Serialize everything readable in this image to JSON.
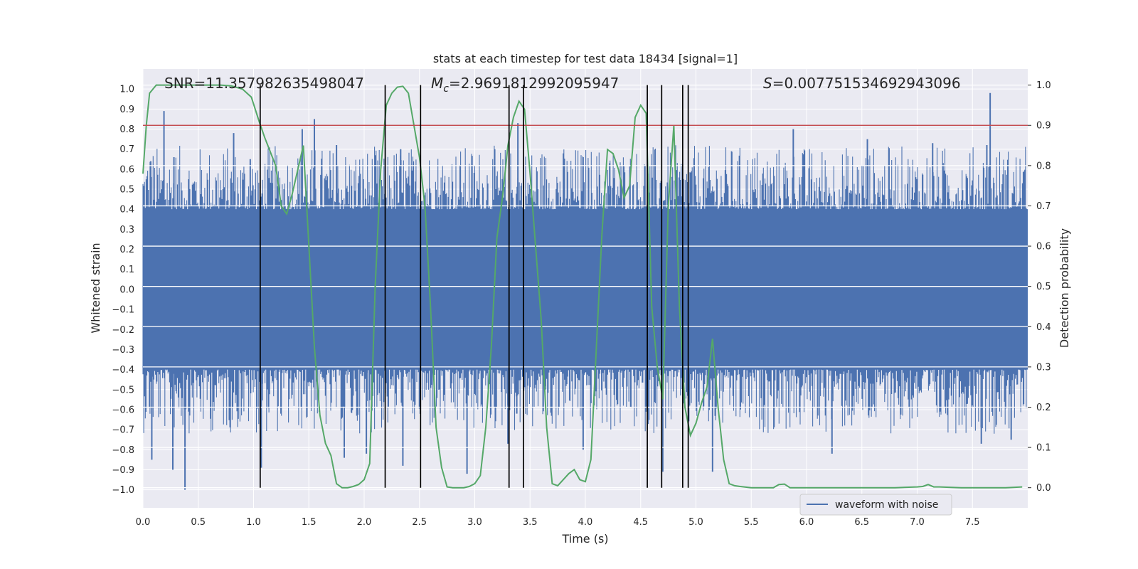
{
  "chart_data": {
    "type": "line",
    "title": "stats at each timestep for test data 18434 [signal=1]",
    "xlabel": "Time (s)",
    "ylabel_left": "Whitened strain",
    "ylabel_right": "Detection probability",
    "xlim": [
      0.0,
      8.0
    ],
    "ylim_left": [
      -1.09,
      1.1
    ],
    "ylim_right": [
      -0.05,
      1.04
    ],
    "x_ticks": [
      0.0,
      0.5,
      1.0,
      1.5,
      2.0,
      2.5,
      3.0,
      3.5,
      4.0,
      4.5,
      5.0,
      5.5,
      6.0,
      6.5,
      7.0,
      7.5
    ],
    "x_tick_labels": [
      "0.0",
      "0.5",
      "1.0",
      "1.5",
      "2.0",
      "2.5",
      "3.0",
      "3.5",
      "4.0",
      "4.5",
      "5.0",
      "5.5",
      "6.0",
      "6.5",
      "7.0",
      "7.5"
    ],
    "y_left_ticks": [
      1.0,
      0.9,
      0.8,
      0.7,
      0.6,
      0.5,
      0.4,
      0.3,
      0.2,
      0.1,
      0.0,
      -0.1,
      -0.2,
      -0.3,
      -0.4,
      -0.5,
      -0.6,
      -0.7,
      -0.8,
      -0.9,
      -1.0
    ],
    "y_left_tick_labels": [
      "1.0",
      "0.9",
      "0.8",
      "0.7",
      "0.6",
      "0.5",
      "0.4",
      "0.3",
      "0.2",
      "0.1",
      "0.0",
      "−0.1",
      "−0.2",
      "−0.3",
      "−0.4",
      "−0.5",
      "−0.6",
      "−0.7",
      "−0.8",
      "−0.9",
      "−1.0"
    ],
    "y_right_ticks": [
      1.0,
      0.9,
      0.8,
      0.7,
      0.6,
      0.5,
      0.4,
      0.3,
      0.2,
      0.1,
      0.0
    ],
    "y_right_tick_labels": [
      "1.0",
      "0.9",
      "0.8",
      "0.7",
      "0.6",
      "0.5",
      "0.4",
      "0.3",
      "0.2",
      "0.1",
      "0.0"
    ],
    "grid": true,
    "legend": {
      "placement": "lower-right",
      "entries": [
        "waveform with noise"
      ]
    },
    "annotations": {
      "snr": "SNR=11.357982635498047",
      "mc_symbol": "M",
      "mc_subscript": "c",
      "mc_value": "=2.9691812992095947",
      "s_symbol": "S",
      "s_value": "=0.007751534692943096"
    },
    "series": [
      {
        "name": "waveform with noise",
        "axis": "left",
        "color": "#4c72b0",
        "kind": "dense-noise",
        "x_range": [
          0.0,
          8.0
        ],
        "core_amplitude": 0.4,
        "spikes": [
          {
            "x": 0.19,
            "y": 0.89
          },
          {
            "x": 0.07,
            "y": 0.64
          },
          {
            "x": 0.08,
            "y": -0.85
          },
          {
            "x": 0.28,
            "y": 0.66
          },
          {
            "x": 0.38,
            "y": -1.0
          },
          {
            "x": 0.27,
            "y": -0.9
          },
          {
            "x": 0.82,
            "y": 0.78
          },
          {
            "x": 0.97,
            "y": 0.65
          },
          {
            "x": 1.07,
            "y": -0.89
          },
          {
            "x": 1.55,
            "y": 0.85
          },
          {
            "x": 1.44,
            "y": 0.8
          },
          {
            "x": 1.82,
            "y": -0.84
          },
          {
            "x": 1.75,
            "y": 0.72
          },
          {
            "x": 2.02,
            "y": -0.82
          },
          {
            "x": 2.35,
            "y": -0.88
          },
          {
            "x": 2.33,
            "y": 0.7
          },
          {
            "x": 2.93,
            "y": -0.92
          },
          {
            "x": 3.39,
            "y": 0.83
          },
          {
            "x": 3.3,
            "y": -0.77
          },
          {
            "x": 3.38,
            "y": -0.62
          },
          {
            "x": 3.98,
            "y": -0.8
          },
          {
            "x": 4.22,
            "y": 0.63
          },
          {
            "x": 4.7,
            "y": -0.91
          },
          {
            "x": 5.15,
            "y": -0.91
          },
          {
            "x": 5.88,
            "y": 0.8
          },
          {
            "x": 6.23,
            "y": -0.82
          },
          {
            "x": 6.55,
            "y": 0.75
          },
          {
            "x": 7.14,
            "y": 0.73
          },
          {
            "x": 7.58,
            "y": -0.77
          },
          {
            "x": 7.66,
            "y": 0.98
          },
          {
            "x": 7.63,
            "y": 0.72
          },
          {
            "x": 7.85,
            "y": -0.75
          }
        ]
      },
      {
        "name": "detection probability",
        "axis": "right",
        "color": "#55a868",
        "x": [
          0.0,
          0.03,
          0.06,
          0.12,
          0.2,
          0.3,
          0.4,
          0.5,
          0.6,
          0.7,
          0.8,
          0.9,
          0.98,
          1.05,
          1.1,
          1.2,
          1.25,
          1.3,
          1.35,
          1.4,
          1.45,
          1.5,
          1.55,
          1.6,
          1.65,
          1.7,
          1.75,
          1.8,
          1.85,
          1.9,
          1.95,
          2.0,
          2.05,
          2.1,
          2.15,
          2.2,
          2.25,
          2.3,
          2.35,
          2.4,
          2.45,
          2.5,
          2.55,
          2.6,
          2.65,
          2.7,
          2.75,
          2.8,
          2.85,
          2.9,
          2.95,
          3.0,
          3.05,
          3.1,
          3.15,
          3.2,
          3.25,
          3.3,
          3.35,
          3.4,
          3.45,
          3.5,
          3.55,
          3.6,
          3.65,
          3.7,
          3.75,
          3.8,
          3.85,
          3.9,
          3.95,
          4.0,
          4.05,
          4.1,
          4.15,
          4.2,
          4.25,
          4.3,
          4.35,
          4.4,
          4.45,
          4.5,
          4.55,
          4.6,
          4.65,
          4.7,
          4.75,
          4.8,
          4.85,
          4.9,
          4.95,
          5.0,
          5.05,
          5.1,
          5.15,
          5.2,
          5.25,
          5.3,
          5.35,
          5.4,
          5.5,
          5.6,
          5.7,
          5.75,
          5.8,
          5.85,
          5.9,
          6.0,
          6.2,
          6.4,
          6.6,
          6.8,
          7.0,
          7.05,
          7.1,
          7.15,
          7.2,
          7.4,
          7.6,
          7.8,
          7.95
        ],
        "y": [
          0.78,
          0.9,
          0.98,
          1.0,
          1.0,
          1.0,
          1.0,
          1.0,
          1.0,
          1.0,
          0.998,
          0.99,
          0.97,
          0.91,
          0.87,
          0.8,
          0.7,
          0.68,
          0.73,
          0.79,
          0.85,
          0.6,
          0.35,
          0.18,
          0.11,
          0.08,
          0.01,
          0.0,
          0.0,
          0.003,
          0.008,
          0.02,
          0.06,
          0.5,
          0.79,
          0.95,
          0.98,
          0.995,
          0.997,
          0.98,
          0.9,
          0.82,
          0.7,
          0.45,
          0.15,
          0.05,
          0.002,
          0.0,
          0.0,
          0.0,
          0.003,
          0.01,
          0.03,
          0.15,
          0.35,
          0.62,
          0.72,
          0.85,
          0.92,
          0.96,
          0.94,
          0.78,
          0.6,
          0.42,
          0.15,
          0.01,
          0.005,
          0.02,
          0.035,
          0.045,
          0.02,
          0.015,
          0.07,
          0.35,
          0.63,
          0.84,
          0.83,
          0.79,
          0.72,
          0.75,
          0.92,
          0.95,
          0.93,
          0.45,
          0.3,
          0.22,
          0.7,
          0.9,
          0.45,
          0.2,
          0.13,
          0.16,
          0.21,
          0.25,
          0.37,
          0.2,
          0.07,
          0.01,
          0.005,
          0.003,
          0.0,
          0.0,
          0.0,
          0.008,
          0.009,
          0.0,
          0.0,
          0.0,
          0.0,
          0.0,
          0.0,
          0.0,
          0.002,
          0.003,
          0.008,
          0.002,
          0.002,
          0.0,
          0.0,
          0.0,
          0.002
        ]
      }
    ],
    "threshold_line": {
      "axis": "right",
      "y": 0.9,
      "color": "#c44e52"
    },
    "vertical_lines": {
      "color": "#000000",
      "x": [
        1.06,
        2.19,
        2.51,
        3.31,
        3.44,
        4.56,
        4.69,
        4.88,
        4.93
      ]
    }
  }
}
